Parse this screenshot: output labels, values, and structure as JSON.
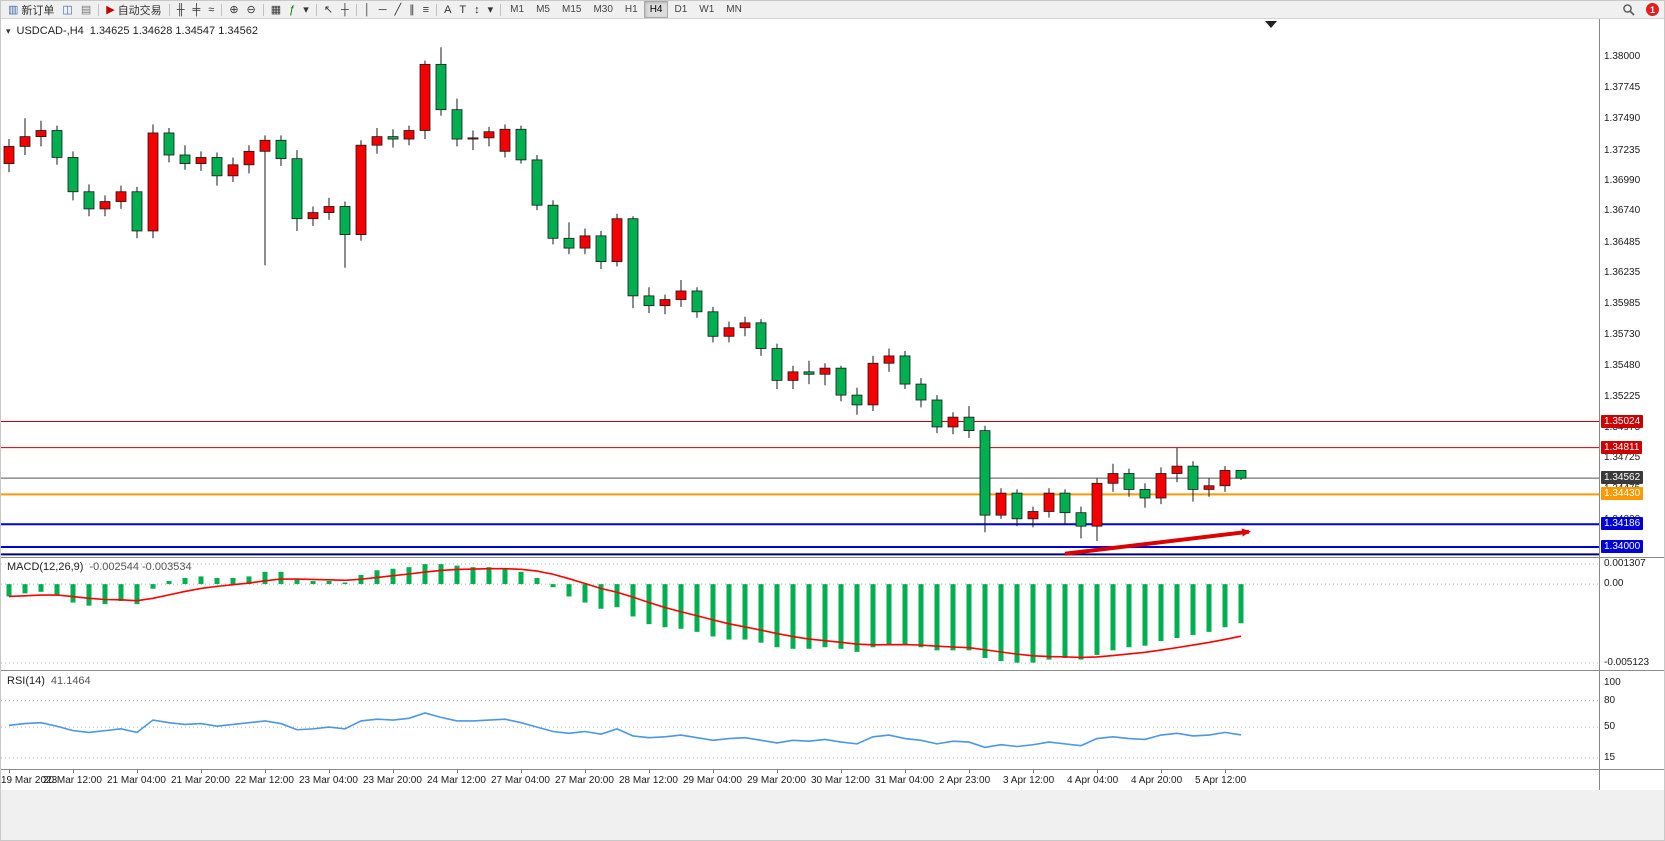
{
  "toolbar": {
    "new_order_label": "新订单",
    "auto_trading_label": "自动交易",
    "items": [
      {
        "name": "new-order-button",
        "glyph": "▥",
        "glyph_color": "#3a6ea5",
        "label": "新订单"
      },
      {
        "name": "chart-window-icon",
        "glyph": "◫",
        "glyph_color": "#3a6ea5"
      },
      {
        "name": "profiles-icon",
        "glyph": "▤",
        "glyph_color": "#777777"
      },
      {
        "sep": true
      },
      {
        "name": "auto-trading-button",
        "glyph": "▶",
        "glyph_color": "#c00000",
        "label": "自动交易"
      },
      {
        "sep": true
      },
      {
        "name": "bar-chart-icon",
        "glyph": "╫"
      },
      {
        "name": "candlestick-chart-icon",
        "glyph": "╪"
      },
      {
        "name": "line-chart-icon",
        "glyph": "≈"
      },
      {
        "sep": true
      },
      {
        "name": "zoom-in-icon",
        "glyph": "⊕"
      },
      {
        "name": "zoom-out-icon",
        "glyph": "⊖"
      },
      {
        "sep": true
      },
      {
        "name": "tile-windows-icon",
        "glyph": "▦"
      },
      {
        "name": "indicators-icon",
        "glyph": "ƒ",
        "glyph_color": "#008000"
      },
      {
        "name": "indicators-dropdown-icon",
        "glyph": "▾"
      },
      {
        "sep": true
      },
      {
        "name": "cursor-icon",
        "glyph": "↖"
      },
      {
        "name": "crosshair-icon",
        "glyph": "┼"
      },
      {
        "sep": true
      },
      {
        "name": "vertical-line-icon",
        "glyph": "│"
      },
      {
        "name": "horizontal-line-icon",
        "glyph": "─"
      },
      {
        "name": "trendline-icon",
        "glyph": "╱"
      },
      {
        "name": "channel-icon",
        "glyph": "∥"
      },
      {
        "name": "fibonacci-icon",
        "glyph": "≡"
      },
      {
        "sep": true
      },
      {
        "name": "text-icon",
        "glyph": "A"
      },
      {
        "name": "text-label-icon",
        "glyph": "T"
      },
      {
        "name": "arrows-tool-icon",
        "glyph": "↕"
      },
      {
        "name": "arrows-dropdown-icon",
        "glyph": "▾"
      },
      {
        "sep": true
      }
    ],
    "timeframes": [
      "M1",
      "M5",
      "M15",
      "M30",
      "H1",
      "H4",
      "D1",
      "W1",
      "MN"
    ],
    "active_timeframe": "H4",
    "notification_count": "1"
  },
  "chart": {
    "caret_glyph": "▾",
    "symbol_title": "USDCAD-,H4",
    "ohlc_text": "1.34625 1.34628 1.34547 1.34562"
  },
  "macd_panel": {
    "label": "MACD(12,26,9)",
    "values_text": "-0.002544 -0.003534"
  },
  "rsi_panel": {
    "label": "RSI(14)",
    "value_text": "41.1464"
  },
  "chart_data": {
    "type": "candlestick",
    "symbol": "USDCAD",
    "timeframe": "H4",
    "title": "USDCAD-,H4",
    "current_ohlc": {
      "open": 1.34625,
      "high": 1.34628,
      "low": 1.34547,
      "close": 1.34562
    },
    "up_color_meaning": "red = bullish, green = bearish (Chinese color convention)",
    "candles": [
      [
        1.3713,
        1.3733,
        1.3706,
        1.3727
      ],
      [
        1.3727,
        1.375,
        1.372,
        1.3735
      ],
      [
        1.3735,
        1.3748,
        1.3727,
        1.374
      ],
      [
        1.374,
        1.3744,
        1.3712,
        1.3718
      ],
      [
        1.3718,
        1.3723,
        1.3683,
        1.369
      ],
      [
        1.369,
        1.3696,
        1.367,
        1.3676
      ],
      [
        1.3676,
        1.3687,
        1.367,
        1.3682
      ],
      [
        1.3682,
        1.3695,
        1.3676,
        1.369
      ],
      [
        1.369,
        1.3694,
        1.3652,
        1.3658
      ],
      [
        1.3658,
        1.3745,
        1.3652,
        1.3738
      ],
      [
        1.3738,
        1.3742,
        1.3714,
        1.372
      ],
      [
        1.372,
        1.3728,
        1.3708,
        1.3713
      ],
      [
        1.3713,
        1.3723,
        1.3707,
        1.3718
      ],
      [
        1.3718,
        1.3722,
        1.3695,
        1.3703
      ],
      [
        1.3703,
        1.3718,
        1.3698,
        1.3712
      ],
      [
        1.3712,
        1.3728,
        1.3705,
        1.3723
      ],
      [
        1.3723,
        1.3736,
        1.363,
        1.3732
      ],
      [
        1.3732,
        1.3736,
        1.3711,
        1.3717
      ],
      [
        1.3717,
        1.3724,
        1.3658,
        1.3668
      ],
      [
        1.3668,
        1.3678,
        1.3662,
        1.3673
      ],
      [
        1.3673,
        1.3685,
        1.3667,
        1.3678
      ],
      [
        1.3678,
        1.3682,
        1.3628,
        1.3655
      ],
      [
        1.3655,
        1.3732,
        1.365,
        1.3728
      ],
      [
        1.3728,
        1.3742,
        1.3721,
        1.3735
      ],
      [
        1.3735,
        1.3741,
        1.3726,
        1.3733
      ],
      [
        1.3733,
        1.3744,
        1.3728,
        1.374
      ],
      [
        1.374,
        1.3797,
        1.3733,
        1.3794
      ],
      [
        1.3794,
        1.3808,
        1.3752,
        1.3757
      ],
      [
        1.3757,
        1.3766,
        1.3727,
        1.3733
      ],
      [
        1.3733,
        1.374,
        1.3724,
        1.3734
      ],
      [
        1.3734,
        1.3743,
        1.3727,
        1.3739
      ],
      [
        1.3723,
        1.3745,
        1.3718,
        1.3741
      ],
      [
        1.3741,
        1.3744,
        1.3713,
        1.3716
      ],
      [
        1.3716,
        1.372,
        1.3675,
        1.3679
      ],
      [
        1.3679,
        1.3683,
        1.3647,
        1.3652
      ],
      [
        1.3652,
        1.3665,
        1.3639,
        1.3644
      ],
      [
        1.3644,
        1.366,
        1.3639,
        1.3654
      ],
      [
        1.3654,
        1.3658,
        1.3627,
        1.3633
      ],
      [
        1.3633,
        1.3672,
        1.3629,
        1.3668
      ],
      [
        1.3668,
        1.367,
        1.3595,
        1.3605
      ],
      [
        1.3605,
        1.3612,
        1.3591,
        1.3597
      ],
      [
        1.3597,
        1.3606,
        1.359,
        1.3602
      ],
      [
        1.3602,
        1.3618,
        1.3596,
        1.3609
      ],
      [
        1.3609,
        1.3612,
        1.3587,
        1.3592
      ],
      [
        1.3592,
        1.3596,
        1.3567,
        1.3572
      ],
      [
        1.3572,
        1.3584,
        1.3567,
        1.3579
      ],
      [
        1.3579,
        1.3588,
        1.3572,
        1.3583
      ],
      [
        1.3583,
        1.3586,
        1.3556,
        1.3562
      ],
      [
        1.3562,
        1.3566,
        1.3529,
        1.3536
      ],
      [
        1.3536,
        1.3548,
        1.3529,
        1.3543
      ],
      [
        1.3543,
        1.3552,
        1.3533,
        1.3541
      ],
      [
        1.3541,
        1.355,
        1.3532,
        1.3546
      ],
      [
        1.3546,
        1.3548,
        1.3519,
        1.3524
      ],
      [
        1.3524,
        1.353,
        1.3508,
        1.3516
      ],
      [
        1.3516,
        1.3556,
        1.3511,
        1.355
      ],
      [
        1.355,
        1.3562,
        1.3543,
        1.3556
      ],
      [
        1.3556,
        1.356,
        1.3529,
        1.3533
      ],
      [
        1.3533,
        1.3538,
        1.3514,
        1.352
      ],
      [
        1.352,
        1.3524,
        1.3493,
        1.3498
      ],
      [
        1.3498,
        1.351,
        1.3492,
        1.3506
      ],
      [
        1.3506,
        1.3515,
        1.3489,
        1.3495
      ],
      [
        1.3495,
        1.3499,
        1.3412,
        1.3426
      ],
      [
        1.3426,
        1.3448,
        1.3423,
        1.3444
      ],
      [
        1.3444,
        1.3447,
        1.3417,
        1.3423
      ],
      [
        1.3423,
        1.3433,
        1.3416,
        1.3429
      ],
      [
        1.3429,
        1.3448,
        1.3424,
        1.3444
      ],
      [
        1.3444,
        1.3447,
        1.3418,
        1.3428
      ],
      [
        1.3428,
        1.3433,
        1.3407,
        1.3417
      ],
      [
        1.3417,
        1.3456,
        1.3405,
        1.3452
      ],
      [
        1.3452,
        1.3468,
        1.3445,
        1.346
      ],
      [
        1.346,
        1.3464,
        1.3441,
        1.3447
      ],
      [
        1.3447,
        1.3452,
        1.3432,
        1.344
      ],
      [
        1.344,
        1.3465,
        1.3435,
        1.346
      ],
      [
        1.346,
        1.3481,
        1.3453,
        1.3466
      ],
      [
        1.3466,
        1.347,
        1.3437,
        1.3447
      ],
      [
        1.3447,
        1.3456,
        1.3441,
        1.345
      ],
      [
        1.345,
        1.3466,
        1.3445,
        1.34625
      ],
      [
        1.34625,
        1.34628,
        1.34547,
        1.34562
      ]
    ],
    "x_labels": [
      "19 Mar 2023",
      "20 Mar 12:00",
      "21 Mar 04:00",
      "21 Mar 20:00",
      "22 Mar 12:00",
      "23 Mar 04:00",
      "23 Mar 20:00",
      "24 Mar 12:00",
      "27 Mar 04:00",
      "27 Mar 20:00",
      "28 Mar 12:00",
      "29 Mar 04:00",
      "29 Mar 20:00",
      "30 Mar 12:00",
      "31 Mar 04:00",
      "2 Apr 23:00",
      "3 Apr 12:00",
      "4 Apr 04:00",
      "4 Apr 20:00",
      "5 Apr 12:00"
    ],
    "x_label_step": 4,
    "y_axis_labels": [
      1.38,
      1.37745,
      1.3749,
      1.37235,
      1.3699,
      1.3674,
      1.36485,
      1.36235,
      1.35985,
      1.3573,
      1.3548,
      1.35225,
      1.34975,
      1.34725,
      1.34475,
      1.3422,
      1.3397
    ],
    "hlines": [
      {
        "price": 1.35024,
        "color": "#cc0000",
        "width": 1,
        "chip": true
      },
      {
        "price": 1.34811,
        "color": "#cc0000",
        "width": 1,
        "chip": true
      },
      {
        "price": 1.3443,
        "color": "#ff9900",
        "width": 2,
        "chip": true
      },
      {
        "price": 1.34186,
        "color": "#0000d8",
        "width": 2,
        "chip": true
      },
      {
        "price": 1.34,
        "color": "#0000d8",
        "width": 2,
        "chip": true
      },
      {
        "price": 1.3394,
        "color": "#000080",
        "width": 2,
        "chip": false
      }
    ],
    "current_price": 1.34562,
    "current_price_color": "#3a3a3a",
    "arrow": {
      "from_index": 66,
      "from_price": 1.33945,
      "to_index": 77.5,
      "to_price": 1.34125,
      "color": "#dd0000"
    },
    "macd": {
      "params": "12,26,9",
      "macd_value": -0.002544,
      "signal_value": -0.003534,
      "axis_labels": [
        "0.001307",
        "0.00",
        "-0.005123"
      ],
      "axis_values": [
        0.001307,
        0,
        -0.005123
      ],
      "values": [
        -0.0008,
        -0.0006,
        -0.0005,
        -0.0007,
        -0.0012,
        -0.0014,
        -0.0013,
        -0.0011,
        -0.0013,
        -0.0003,
        0.0002,
        0.0004,
        0.0005,
        0.0004,
        0.0004,
        0.0005,
        0.0008,
        0.0008,
        0.0003,
        0.0002,
        0.0002,
        0.0001,
        0.0006,
        0.0009,
        0.001,
        0.0011,
        0.0013,
        0.0013,
        0.0012,
        0.0011,
        0.0011,
        0.001,
        0.0008,
        0.0004,
        -0.0002,
        -0.0008,
        -0.0012,
        -0.0016,
        -0.0015,
        -0.0021,
        -0.0026,
        -0.0028,
        -0.0029,
        -0.0031,
        -0.0034,
        -0.0036,
        -0.0036,
        -0.0038,
        -0.0041,
        -0.0042,
        -0.0042,
        -0.0041,
        -0.0042,
        -0.0044,
        -0.0041,
        -0.0039,
        -0.0039,
        -0.0041,
        -0.0043,
        -0.0043,
        -0.0043,
        -0.0048,
        -0.005,
        -0.0051,
        -0.0051,
        -0.0049,
        -0.0048,
        -0.0049,
        -0.0046,
        -0.0043,
        -0.0041,
        -0.004,
        -0.0037,
        -0.0035,
        -0.0033,
        -0.0031,
        -0.0028,
        -0.002544
      ]
    },
    "rsi": {
      "period": 14,
      "value": 41.1464,
      "levels": [
        80,
        50,
        15
      ],
      "axis_labels": [
        "100",
        "80",
        "50",
        "15"
      ],
      "axis_values": [
        100,
        80,
        50,
        15
      ],
      "values": [
        52,
        54,
        55,
        51,
        46,
        44,
        46,
        48,
        44,
        58,
        55,
        53,
        54,
        51,
        53,
        55,
        57,
        54,
        47,
        48,
        50,
        48,
        57,
        59,
        58,
        60,
        66,
        61,
        57,
        57,
        58,
        59,
        55,
        50,
        45,
        43,
        45,
        42,
        48,
        40,
        38,
        39,
        41,
        38,
        35,
        37,
        38,
        35,
        32,
        35,
        34,
        36,
        33,
        31,
        39,
        41,
        37,
        35,
        31,
        34,
        33,
        27,
        30,
        28,
        30,
        33,
        31,
        29,
        37,
        39,
        37,
        36,
        41,
        43,
        40,
        41,
        44,
        41.15
      ]
    },
    "colors": {
      "up": "#f40000",
      "down": "#00b050",
      "wick": "#1a1a1a",
      "macd_bar": "#00b050",
      "signal_line": "#ff0000",
      "rsi_line": "#4b96e6"
    }
  }
}
